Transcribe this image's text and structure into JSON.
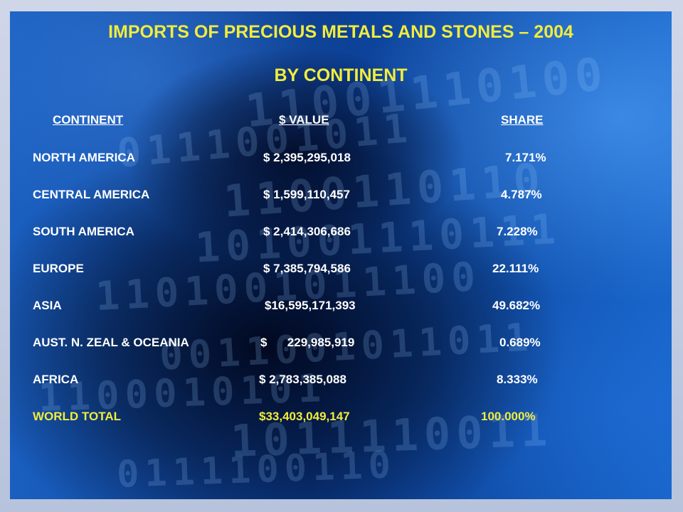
{
  "title": "IMPORTS OF PRECIOUS METALS AND STONES – 2004",
  "subtitle": "BY CONTINENT",
  "table": {
    "headers": [
      "CONTINENT",
      "$ VALUE",
      "SHARE"
    ],
    "rows": [
      {
        "continent": "NORTH AMERICA",
        "value": "$ 2,395,295,018",
        "share": "7.171%"
      },
      {
        "continent": "CENTRAL AMERICA",
        "value": "$ 1,599,110,457",
        "share": "4.787%"
      },
      {
        "continent": "SOUTH AMERICA",
        "value": "$ 2,414,306,686",
        "share": "7.228%"
      },
      {
        "continent": "EUROPE",
        "value": "$ 7,385,794,586",
        "share": "22.111%"
      },
      {
        "continent": "ASIA",
        "value": "$16,595,171,393",
        "share": "49.682%"
      },
      {
        "continent": "AUST. N. ZEAL & OCEANIA",
        "value": "$      229,985,919",
        "share": "0.689%"
      },
      {
        "continent": "AFRICA",
        "value": "$ 2,783,385,088",
        "share": "8.333%"
      }
    ],
    "total": {
      "continent": "WORLD TOTAL",
      "value": "$33,403,049,147",
      "share": "100.000%"
    }
  },
  "background": {
    "digit_rows": [
      "11001110100",
      "0111001011",
      "1100110110",
      "101001110111",
      "1101001011100",
      "0011001011011",
      "1100010101",
      "1011110011",
      "0111100110"
    ]
  },
  "colors": {
    "title": "#f2ec3c",
    "text": "#ffffff",
    "total": "#f2ec3c",
    "panel": "#0b3d91",
    "frame": "#c9d2e6"
  }
}
